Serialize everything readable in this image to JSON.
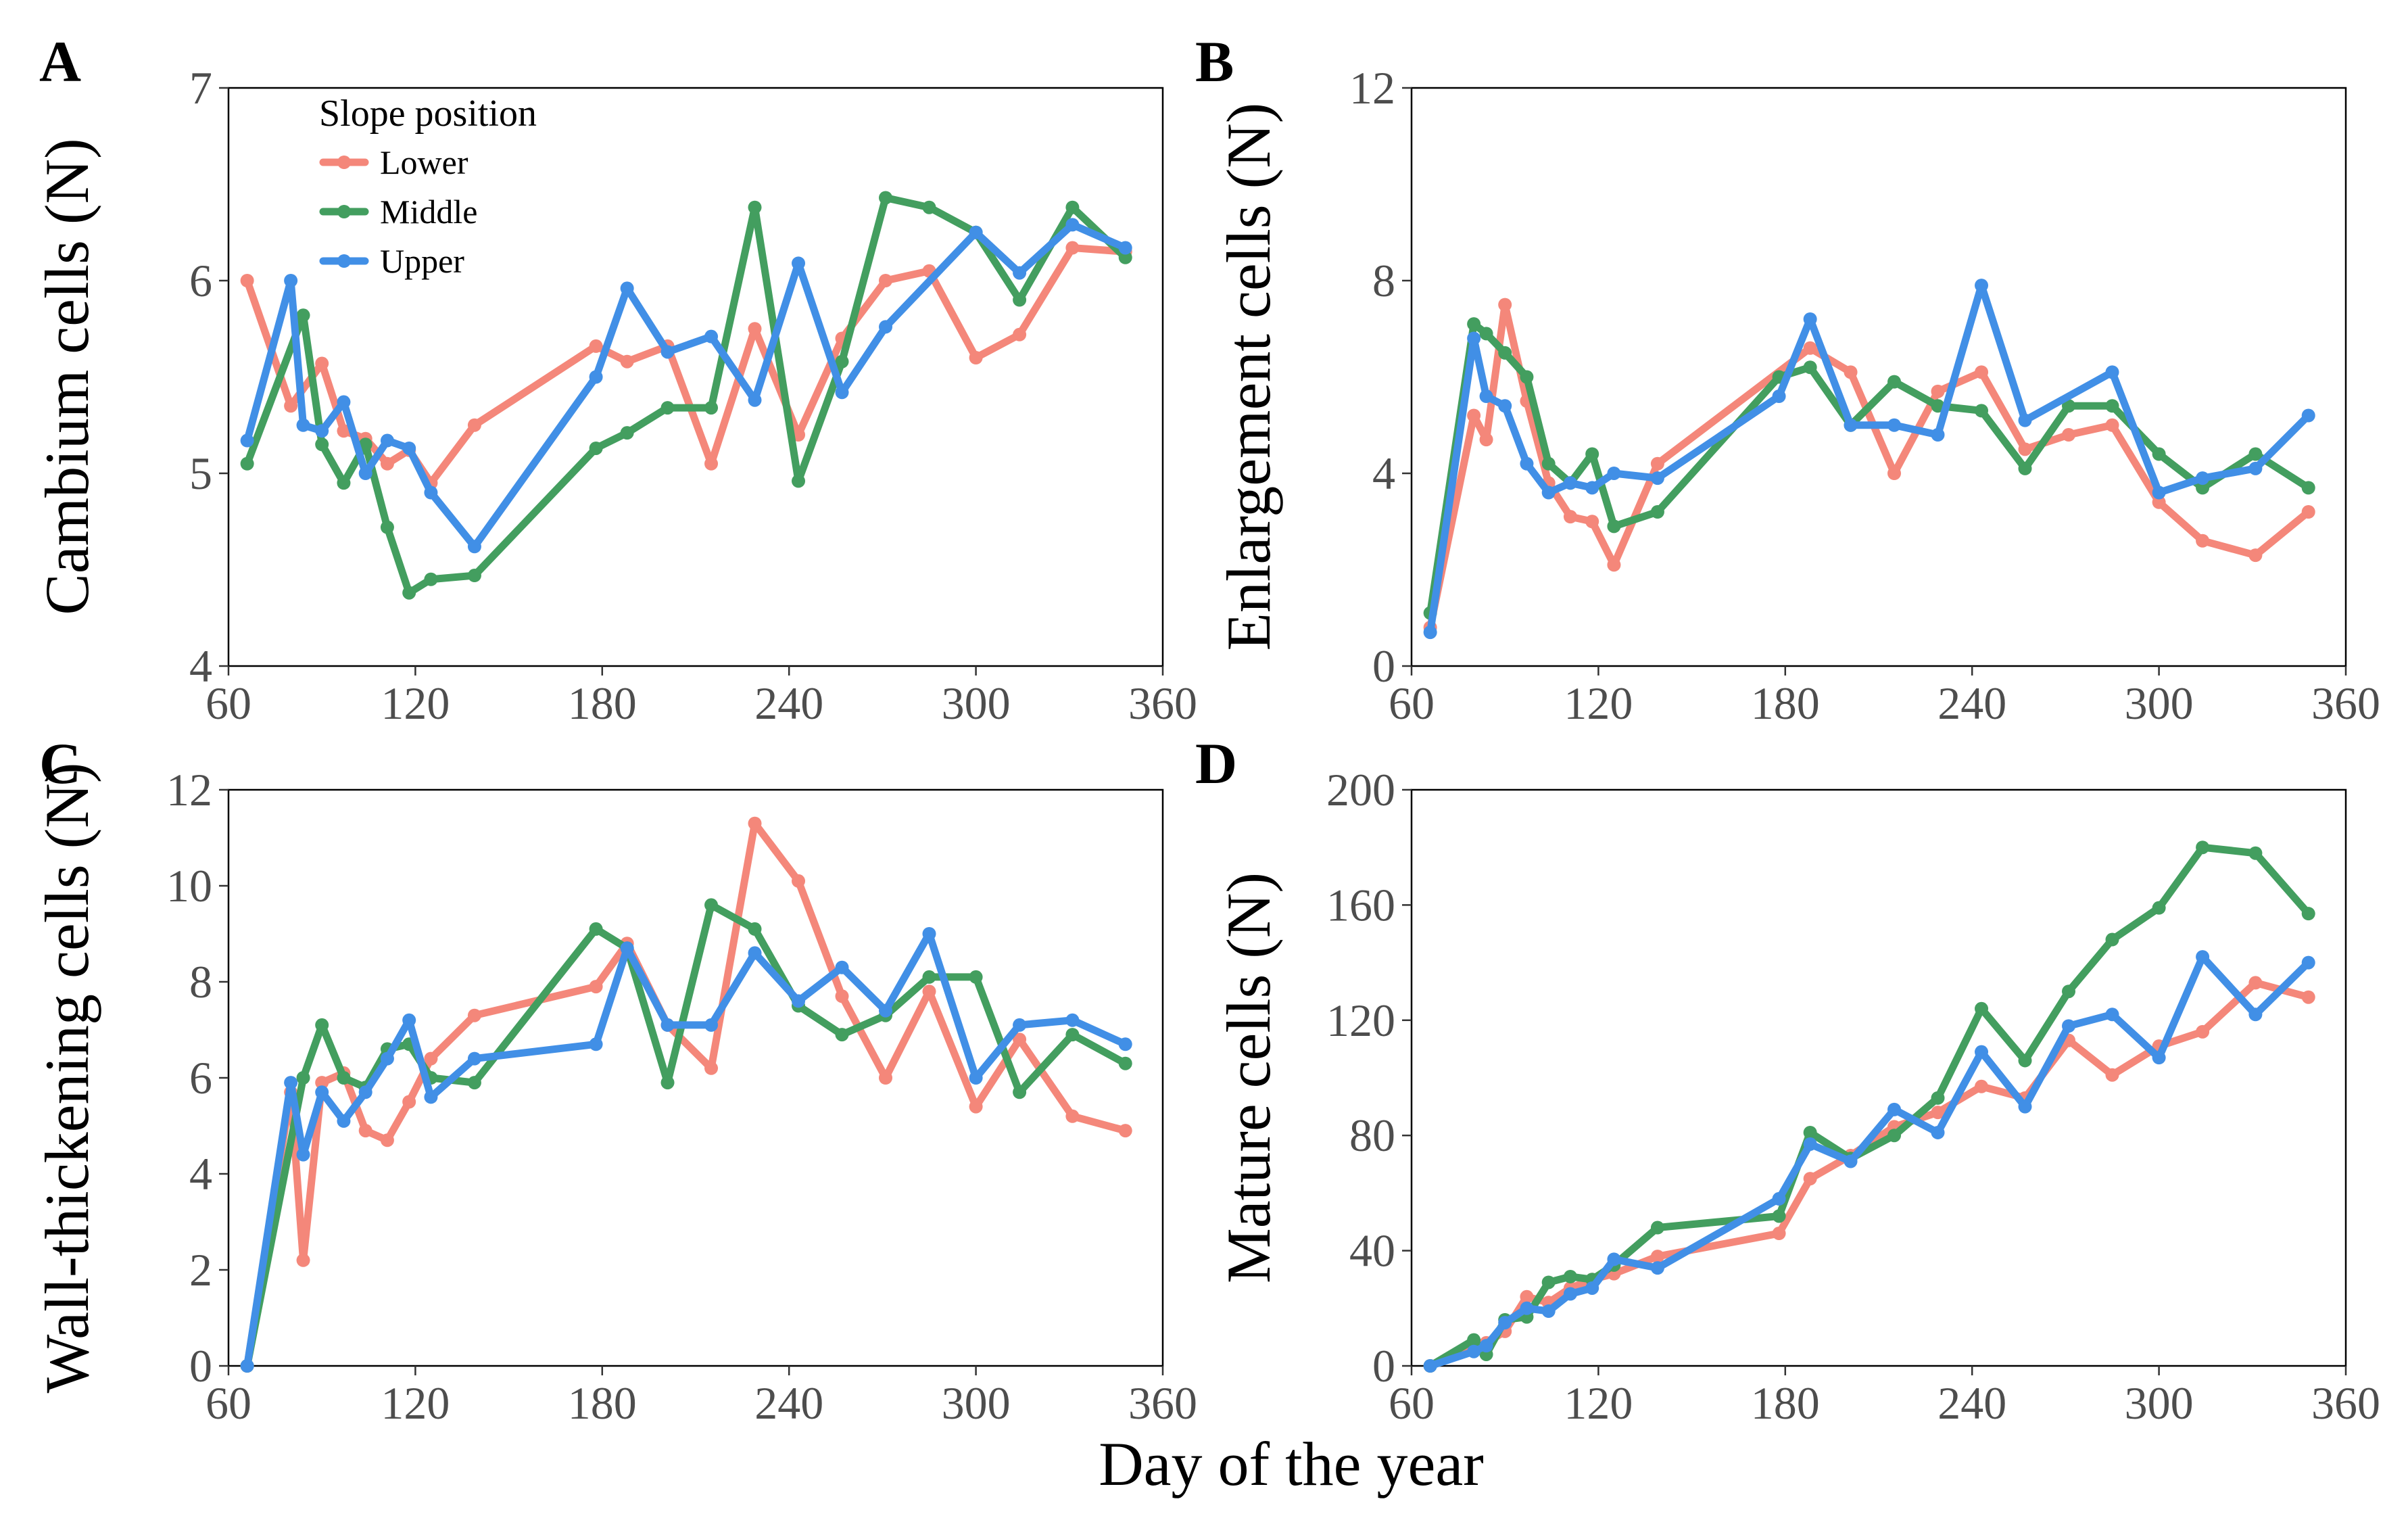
{
  "figure": {
    "shared_xlabel": "Day of the year",
    "legend": {
      "title": "Slope position",
      "entries": [
        {
          "label": "Lower",
          "color": "#F4877A"
        },
        {
          "label": "Middle",
          "color": "#439E5F"
        },
        {
          "label": "Upper",
          "color": "#418FE6"
        }
      ]
    }
  },
  "chart_data": [
    {
      "panel": "A",
      "type": "line",
      "ylabel": "Cambium cells (N)",
      "xlim": [
        60,
        360
      ],
      "ylim": [
        4,
        7
      ],
      "xticks": [
        60,
        120,
        180,
        240,
        300,
        360
      ],
      "yticks": [
        4,
        5,
        6,
        7
      ],
      "series": [
        {
          "name": "Lower",
          "color": "#F4877A",
          "x": [
            66,
            80,
            90,
            97,
            104,
            111,
            118,
            125,
            139,
            178,
            188,
            201,
            215,
            229,
            243,
            257,
            271,
            285,
            300,
            314,
            331,
            348
          ],
          "y": [
            6.0,
            5.35,
            5.57,
            5.22,
            5.18,
            5.05,
            5.12,
            4.95,
            5.25,
            5.66,
            5.58,
            5.66,
            5.05,
            5.75,
            5.2,
            5.7,
            6.0,
            6.05,
            5.6,
            5.72,
            6.17,
            6.15
          ]
        },
        {
          "name": "Middle",
          "color": "#439E5F",
          "x": [
            66,
            84,
            90,
            97,
            104,
            111,
            118,
            125,
            139,
            178,
            188,
            201,
            215,
            229,
            243,
            257,
            271,
            285,
            300,
            314,
            331,
            348
          ],
          "y": [
            5.05,
            5.82,
            5.15,
            4.95,
            5.15,
            4.72,
            4.38,
            4.45,
            4.47,
            5.13,
            5.21,
            5.34,
            5.34,
            6.38,
            4.96,
            5.58,
            6.43,
            6.38,
            6.25,
            5.9,
            6.38,
            6.12
          ]
        },
        {
          "name": "Upper",
          "color": "#418FE6",
          "x": [
            66,
            80,
            84,
            90,
            97,
            104,
            111,
            118,
            125,
            139,
            178,
            188,
            201,
            215,
            229,
            243,
            257,
            271,
            300,
            314,
            331,
            348
          ],
          "y": [
            5.17,
            6.0,
            5.25,
            5.22,
            5.37,
            5.0,
            5.17,
            5.13,
            4.9,
            4.62,
            5.5,
            5.96,
            5.63,
            5.71,
            5.38,
            6.09,
            5.42,
            5.76,
            6.25,
            6.04,
            6.29,
            6.17
          ]
        }
      ]
    },
    {
      "panel": "B",
      "type": "line",
      "ylabel": "Enlargement cells (N)",
      "xlim": [
        60,
        360
      ],
      "ylim": [
        0,
        12
      ],
      "xticks": [
        60,
        120,
        180,
        240,
        300,
        360
      ],
      "yticks": [
        0,
        4,
        8,
        12
      ],
      "series": [
        {
          "name": "Lower",
          "color": "#F4877A",
          "x": [
            66,
            80,
            84,
            90,
            97,
            104,
            111,
            118,
            125,
            139,
            188,
            201,
            215,
            229,
            243,
            257,
            271,
            285,
            300,
            314,
            331,
            348
          ],
          "y": [
            0.8,
            5.2,
            4.7,
            7.5,
            5.5,
            3.8,
            3.1,
            3.0,
            2.1,
            4.2,
            6.6,
            6.1,
            4.0,
            5.7,
            6.1,
            4.5,
            4.8,
            5.0,
            3.4,
            2.6,
            2.3,
            3.2
          ]
        },
        {
          "name": "Middle",
          "color": "#439E5F",
          "x": [
            66,
            80,
            84,
            90,
            97,
            104,
            111,
            118,
            125,
            139,
            178,
            188,
            201,
            215,
            229,
            243,
            257,
            271,
            285,
            300,
            314,
            331,
            348
          ],
          "y": [
            1.1,
            7.1,
            6.9,
            6.5,
            6.0,
            4.2,
            3.8,
            4.4,
            2.9,
            3.2,
            6.0,
            6.2,
            5.0,
            5.9,
            5.4,
            5.3,
            4.1,
            5.4,
            5.4,
            4.4,
            3.7,
            4.4,
            3.7
          ]
        },
        {
          "name": "Upper",
          "color": "#418FE6",
          "x": [
            66,
            80,
            84,
            90,
            97,
            104,
            111,
            118,
            125,
            139,
            178,
            188,
            201,
            215,
            229,
            243,
            257,
            285,
            300,
            314,
            331,
            348
          ],
          "y": [
            0.7,
            6.8,
            5.6,
            5.4,
            4.2,
            3.6,
            3.8,
            3.7,
            4.0,
            3.9,
            5.6,
            7.2,
            5.0,
            5.0,
            4.8,
            7.9,
            5.1,
            6.1,
            3.6,
            3.9,
            4.1,
            5.2
          ]
        }
      ]
    },
    {
      "panel": "C",
      "type": "line",
      "ylabel": "Wall-thickening cells (N)",
      "xlim": [
        60,
        360
      ],
      "ylim": [
        0,
        12
      ],
      "xticks": [
        60,
        120,
        180,
        240,
        300,
        360
      ],
      "yticks": [
        0,
        2,
        4,
        6,
        8,
        10,
        12
      ],
      "series": [
        {
          "name": "Lower",
          "color": "#F4877A",
          "x": [
            66,
            80,
            84,
            90,
            97,
            104,
            111,
            118,
            125,
            139,
            178,
            188,
            201,
            215,
            229,
            243,
            257,
            271,
            285,
            300,
            314,
            331,
            348
          ],
          "y": [
            0,
            5.7,
            2.2,
            5.9,
            6.1,
            4.9,
            4.7,
            5.5,
            6.4,
            7.3,
            7.9,
            8.8,
            7.1,
            6.2,
            11.3,
            10.1,
            7.7,
            6.0,
            7.8,
            5.4,
            6.8,
            5.2,
            4.9
          ]
        },
        {
          "name": "Middle",
          "color": "#439E5F",
          "x": [
            66,
            84,
            90,
            97,
            104,
            111,
            118,
            125,
            139,
            178,
            188,
            201,
            215,
            229,
            243,
            257,
            271,
            285,
            300,
            314,
            331,
            348
          ],
          "y": [
            0,
            6.0,
            7.1,
            6.0,
            5.8,
            6.6,
            6.7,
            6.0,
            5.9,
            9.1,
            8.7,
            5.9,
            9.6,
            9.1,
            7.5,
            6.9,
            7.3,
            8.1,
            8.1,
            5.7,
            6.9,
            6.3
          ]
        },
        {
          "name": "Upper",
          "color": "#418FE6",
          "x": [
            66,
            80,
            84,
            90,
            97,
            104,
            111,
            118,
            125,
            139,
            178,
            188,
            201,
            215,
            229,
            243,
            257,
            271,
            285,
            300,
            314,
            331,
            348
          ],
          "y": [
            0,
            5.9,
            4.4,
            5.7,
            5.1,
            5.7,
            6.4,
            7.2,
            5.6,
            6.4,
            6.7,
            8.7,
            7.1,
            7.1,
            8.6,
            7.6,
            8.3,
            7.4,
            9.0,
            6.0,
            7.1,
            7.2,
            6.7
          ]
        }
      ]
    },
    {
      "panel": "D",
      "type": "line",
      "ylabel": "Mature cells (N)",
      "xlim": [
        60,
        360
      ],
      "ylim": [
        0,
        200
      ],
      "xticks": [
        60,
        120,
        180,
        240,
        300,
        360
      ],
      "yticks": [
        0,
        40,
        80,
        120,
        160,
        200
      ],
      "series": [
        {
          "name": "Lower",
          "color": "#F4877A",
          "x": [
            66,
            80,
            84,
            90,
            97,
            104,
            111,
            118,
            125,
            139,
            178,
            188,
            201,
            215,
            229,
            243,
            257,
            271,
            285,
            300,
            314,
            331,
            348
          ],
          "y": [
            0,
            6,
            8,
            12,
            24,
            22,
            27,
            30,
            32,
            38,
            46,
            65,
            73,
            83,
            88,
            97,
            93,
            113,
            101,
            111,
            116,
            133,
            128
          ]
        },
        {
          "name": "Middle",
          "color": "#439E5F",
          "x": [
            66,
            80,
            84,
            90,
            97,
            104,
            111,
            118,
            125,
            139,
            178,
            188,
            201,
            215,
            229,
            243,
            257,
            271,
            285,
            300,
            314,
            331,
            348
          ],
          "y": [
            0,
            9,
            4,
            16,
            17,
            29,
            31,
            30,
            35,
            48,
            52,
            81,
            72,
            80,
            93,
            124,
            106,
            130,
            148,
            159,
            180,
            178,
            157
          ]
        },
        {
          "name": "Upper",
          "color": "#418FE6",
          "x": [
            66,
            80,
            84,
            90,
            97,
            104,
            111,
            118,
            125,
            139,
            178,
            188,
            201,
            215,
            229,
            243,
            257,
            271,
            285,
            300,
            314,
            331,
            348
          ],
          "y": [
            0,
            5,
            7,
            15,
            20,
            19,
            25,
            27,
            37,
            34,
            58,
            77,
            71,
            89,
            81,
            109,
            90,
            118,
            122,
            107,
            142,
            122,
            140
          ]
        }
      ]
    }
  ]
}
